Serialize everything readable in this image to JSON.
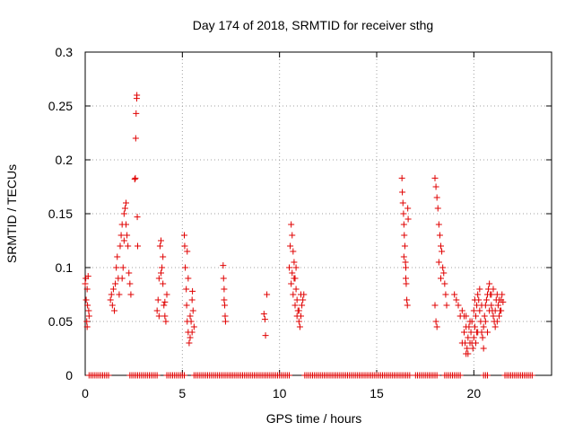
{
  "chart_data": {
    "type": "scatter",
    "title": "Day 174 of 2018, SRMTID for receiver sthg",
    "xlabel": "GPS time / hours",
    "ylabel": "SRMTID / TECUs",
    "xlim": [
      0,
      24
    ],
    "ylim": [
      0,
      0.3
    ],
    "xticks": [
      0,
      5,
      10,
      15,
      20
    ],
    "yticks": [
      0,
      0.05,
      0.1,
      0.15,
      0.2,
      0.25,
      0.3
    ],
    "xtick_labels": [
      "0",
      "5",
      "10",
      "15",
      "20"
    ],
    "ytick_labels": [
      "0",
      "0.05",
      "0.1",
      "0.15",
      "0.2",
      "0.25",
      "0.3"
    ],
    "grid": true,
    "marker": "+",
    "color": "#e00000",
    "series": [
      {
        "name": "SRMTID",
        "points": [
          [
            0.0,
            0.085
          ],
          [
            0.03,
            0.09
          ],
          [
            0.05,
            0.07
          ],
          [
            0.08,
            0.05
          ],
          [
            0.1,
            0.045
          ],
          [
            0.12,
            0.065
          ],
          [
            0.15,
            0.092
          ],
          [
            0.18,
            0.06
          ],
          [
            0.2,
            0.055
          ],
          [
            0.1,
            0.08
          ],
          [
            1.3,
            0.07
          ],
          [
            1.35,
            0.075
          ],
          [
            1.4,
            0.065
          ],
          [
            1.45,
            0.08
          ],
          [
            1.5,
            0.06
          ],
          [
            1.55,
            0.085
          ],
          [
            1.6,
            0.1
          ],
          [
            1.65,
            0.11
          ],
          [
            1.7,
            0.09
          ],
          [
            1.75,
            0.075
          ],
          [
            1.8,
            0.12
          ],
          [
            1.85,
            0.13
          ],
          [
            1.9,
            0.14
          ],
          [
            1.95,
            0.1
          ],
          [
            2.0,
            0.15
          ],
          [
            2.05,
            0.155
          ],
          [
            2.1,
            0.16
          ],
          [
            2.15,
            0.13
          ],
          [
            2.2,
            0.12
          ],
          [
            2.25,
            0.095
          ],
          [
            2.3,
            0.085
          ],
          [
            2.35,
            0.075
          ],
          [
            2.0,
            0.125
          ],
          [
            2.1,
            0.14
          ],
          [
            1.9,
            0.09
          ],
          [
            2.55,
            0.182
          ],
          [
            2.58,
            0.183
          ],
          [
            2.6,
            0.22
          ],
          [
            2.62,
            0.243
          ],
          [
            2.65,
            0.257
          ],
          [
            2.66,
            0.26
          ],
          [
            2.68,
            0.147
          ],
          [
            2.7,
            0.12
          ],
          [
            3.7,
            0.06
          ],
          [
            3.75,
            0.07
          ],
          [
            3.8,
            0.09
          ],
          [
            3.85,
            0.12
          ],
          [
            3.9,
            0.125
          ],
          [
            3.95,
            0.1
          ],
          [
            4.0,
            0.085
          ],
          [
            4.05,
            0.065
          ],
          [
            4.1,
            0.055
          ],
          [
            4.15,
            0.05
          ],
          [
            4.2,
            0.075
          ],
          [
            4.0,
            0.11
          ],
          [
            3.9,
            0.095
          ],
          [
            3.8,
            0.055
          ],
          [
            4.1,
            0.068
          ],
          [
            5.1,
            0.13
          ],
          [
            5.12,
            0.12
          ],
          [
            5.15,
            0.1
          ],
          [
            5.2,
            0.08
          ],
          [
            5.22,
            0.065
          ],
          [
            5.25,
            0.05
          ],
          [
            5.3,
            0.04
          ],
          [
            5.35,
            0.03
          ],
          [
            5.4,
            0.035
          ],
          [
            5.45,
            0.05
          ],
          [
            5.5,
            0.07
          ],
          [
            5.52,
            0.078
          ],
          [
            5.55,
            0.06
          ],
          [
            5.6,
            0.045
          ],
          [
            5.25,
            0.115
          ],
          [
            5.3,
            0.09
          ],
          [
            5.4,
            0.055
          ],
          [
            5.5,
            0.04
          ],
          [
            7.1,
            0.102
          ],
          [
            7.12,
            0.09
          ],
          [
            7.15,
            0.07
          ],
          [
            7.18,
            0.065
          ],
          [
            7.2,
            0.055
          ],
          [
            7.22,
            0.05
          ],
          [
            7.15,
            0.08
          ],
          [
            9.2,
            0.057
          ],
          [
            9.25,
            0.052
          ],
          [
            9.28,
            0.037
          ],
          [
            9.35,
            0.075
          ],
          [
            10.5,
            0.1
          ],
          [
            10.55,
            0.12
          ],
          [
            10.6,
            0.14
          ],
          [
            10.65,
            0.13
          ],
          [
            10.7,
            0.115
          ],
          [
            10.75,
            0.105
          ],
          [
            10.8,
            0.09
          ],
          [
            10.85,
            0.08
          ],
          [
            10.9,
            0.07
          ],
          [
            10.95,
            0.06
          ],
          [
            11.0,
            0.05
          ],
          [
            11.05,
            0.045
          ],
          [
            11.1,
            0.055
          ],
          [
            11.15,
            0.065
          ],
          [
            11.2,
            0.07
          ],
          [
            11.25,
            0.075
          ],
          [
            10.6,
            0.085
          ],
          [
            10.7,
            0.075
          ],
          [
            10.8,
            0.065
          ],
          [
            10.9,
            0.055
          ],
          [
            11.0,
            0.06
          ],
          [
            11.1,
            0.075
          ],
          [
            10.65,
            0.095
          ],
          [
            10.75,
            0.09
          ],
          [
            10.85,
            0.1
          ],
          [
            16.3,
            0.183
          ],
          [
            16.32,
            0.17
          ],
          [
            16.35,
            0.16
          ],
          [
            16.38,
            0.15
          ],
          [
            16.4,
            0.14
          ],
          [
            16.42,
            0.13
          ],
          [
            16.45,
            0.12
          ],
          [
            16.48,
            0.105
          ],
          [
            16.5,
            0.09
          ],
          [
            16.52,
            0.085
          ],
          [
            16.55,
            0.07
          ],
          [
            16.58,
            0.065
          ],
          [
            16.6,
            0.155
          ],
          [
            16.62,
            0.145
          ],
          [
            16.4,
            0.11
          ],
          [
            16.5,
            0.1
          ],
          [
            18.0,
            0.183
          ],
          [
            18.05,
            0.175
          ],
          [
            18.1,
            0.165
          ],
          [
            18.15,
            0.155
          ],
          [
            18.2,
            0.14
          ],
          [
            18.25,
            0.13
          ],
          [
            18.3,
            0.12
          ],
          [
            18.35,
            0.115
          ],
          [
            18.4,
            0.1
          ],
          [
            18.45,
            0.095
          ],
          [
            18.5,
            0.085
          ],
          [
            18.55,
            0.075
          ],
          [
            18.6,
            0.065
          ],
          [
            18.0,
            0.065
          ],
          [
            18.05,
            0.05
          ],
          [
            18.1,
            0.045
          ],
          [
            18.2,
            0.105
          ],
          [
            18.3,
            0.09
          ],
          [
            19.0,
            0.075
          ],
          [
            19.1,
            0.07
          ],
          [
            19.2,
            0.065
          ],
          [
            19.3,
            0.055
          ],
          [
            19.4,
            0.06
          ],
          [
            19.5,
            0.04
          ],
          [
            19.55,
            0.03
          ],
          [
            19.6,
            0.02
          ],
          [
            19.65,
            0.025
          ],
          [
            19.7,
            0.035
          ],
          [
            19.75,
            0.045
          ],
          [
            19.8,
            0.05
          ],
          [
            19.85,
            0.04
          ],
          [
            19.9,
            0.03
          ],
          [
            19.95,
            0.025
          ],
          [
            20.0,
            0.035
          ],
          [
            20.05,
            0.045
          ],
          [
            20.1,
            0.055
          ],
          [
            20.15,
            0.065
          ],
          [
            20.2,
            0.075
          ],
          [
            20.25,
            0.07
          ],
          [
            20.3,
            0.06
          ],
          [
            20.35,
            0.05
          ],
          [
            20.4,
            0.04
          ],
          [
            20.45,
            0.035
          ],
          [
            20.5,
            0.045
          ],
          [
            20.55,
            0.055
          ],
          [
            20.6,
            0.065
          ],
          [
            20.65,
            0.07
          ],
          [
            20.7,
            0.075
          ],
          [
            20.75,
            0.08
          ],
          [
            20.8,
            0.085
          ],
          [
            20.85,
            0.075
          ],
          [
            20.9,
            0.065
          ],
          [
            20.95,
            0.06
          ],
          [
            21.0,
            0.055
          ],
          [
            21.05,
            0.05
          ],
          [
            21.1,
            0.06
          ],
          [
            21.15,
            0.07
          ],
          [
            21.2,
            0.075
          ],
          [
            21.25,
            0.065
          ],
          [
            21.3,
            0.055
          ],
          [
            21.35,
            0.06
          ],
          [
            21.4,
            0.07
          ],
          [
            21.45,
            0.075
          ],
          [
            21.5,
            0.068
          ],
          [
            19.6,
            0.045
          ],
          [
            19.7,
            0.02
          ],
          [
            19.8,
            0.03
          ],
          [
            19.9,
            0.05
          ],
          [
            20.0,
            0.06
          ],
          [
            20.1,
            0.03
          ],
          [
            20.2,
            0.04
          ],
          [
            20.3,
            0.08
          ],
          [
            20.4,
            0.065
          ],
          [
            20.5,
            0.025
          ],
          [
            20.6,
            0.05
          ],
          [
            20.7,
            0.04
          ],
          [
            20.8,
            0.06
          ],
          [
            20.9,
            0.075
          ],
          [
            21.0,
            0.08
          ],
          [
            21.1,
            0.045
          ],
          [
            21.2,
            0.05
          ],
          [
            21.3,
            0.07
          ],
          [
            21.4,
            0.06
          ],
          [
            19.5,
            0.055
          ],
          [
            19.4,
            0.03
          ],
          [
            19.6,
            0.055
          ],
          [
            20.05,
            0.07
          ],
          [
            20.15,
            0.04
          ]
        ]
      }
    ],
    "zero_runs": [
      [
        0.2,
        1.2
      ],
      [
        2.3,
        3.7
      ],
      [
        4.2,
        5.1
      ],
      [
        5.6,
        10.5
      ],
      [
        11.3,
        16.7
      ],
      [
        17.0,
        18.1
      ],
      [
        18.5,
        19.3
      ],
      [
        20.5,
        20.7
      ],
      [
        21.6,
        23.0
      ]
    ],
    "zero_step": 0.1
  }
}
